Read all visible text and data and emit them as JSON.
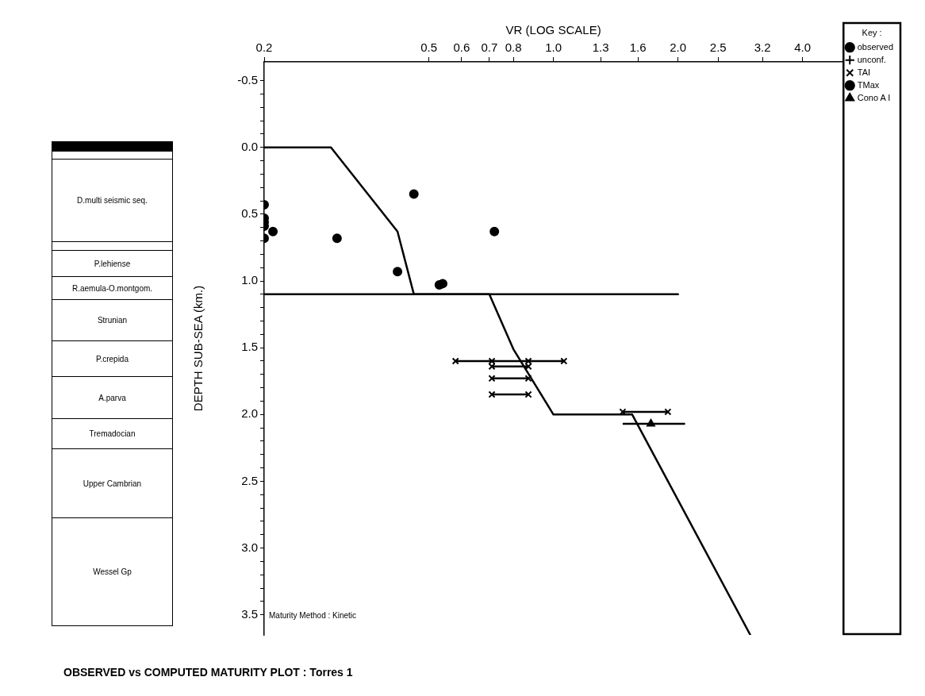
{
  "chart_data": {
    "type": "scatter",
    "title": "OBSERVED vs COMPUTED MATURITY PLOT : Torres 1",
    "xlabel": "VR (LOG SCALE)",
    "ylabel": "DEPTH SUB-SEA (km.)",
    "log": "x",
    "xlim": [
      0.2,
      5
    ],
    "xticks": [
      0.2,
      0.5,
      0.6,
      0.7,
      0.8,
      {
        "value": 1,
        "label": "1.0"
      },
      1.3,
      1.6,
      {
        "value": 2,
        "label": "2.0"
      },
      2.5,
      3.2,
      {
        "value": 4,
        "label": "4.0"
      }
    ],
    "ylim": [
      3.65,
      -0.64
    ],
    "yticks": [
      {
        "value": -0.5,
        "label": "-0.5"
      },
      {
        "value": -0.4,
        "label": null
      },
      {
        "value": -0.3,
        "label": null
      },
      {
        "value": -0.2,
        "label": null
      },
      {
        "value": -0.1,
        "label": null
      },
      {
        "value": 0,
        "label": "0.0"
      },
      {
        "value": 0.1,
        "label": null
      },
      {
        "value": 0.2,
        "label": null
      },
      {
        "value": 0.3,
        "label": null
      },
      {
        "value": 0.4,
        "label": null
      },
      {
        "value": 0.5,
        "label": "0.5"
      },
      {
        "value": 0.6,
        "label": null
      },
      {
        "value": 0.7,
        "label": null
      },
      {
        "value": 0.8,
        "label": null
      },
      {
        "value": 0.9,
        "label": null
      },
      {
        "value": 1,
        "label": "1.0"
      },
      {
        "value": 1.1,
        "label": null
      },
      {
        "value": 1.2,
        "label": null
      },
      {
        "value": 1.3,
        "label": null
      },
      {
        "value": 1.4,
        "label": null
      },
      {
        "value": 1.5,
        "label": "1.5"
      },
      {
        "value": 1.6,
        "label": null
      },
      {
        "value": 1.7,
        "label": null
      },
      {
        "value": 1.8,
        "label": null
      },
      {
        "value": 1.9,
        "label": null
      },
      {
        "value": 2,
        "label": "2.0"
      },
      {
        "value": 2.1,
        "label": null
      },
      {
        "value": 2.2,
        "label": null
      },
      {
        "value": 2.3,
        "label": null
      },
      {
        "value": 2.4,
        "label": null
      },
      {
        "value": 2.5,
        "label": "2.5"
      },
      {
        "value": 2.6,
        "label": null
      },
      {
        "value": 2.7,
        "label": null
      },
      {
        "value": 2.8,
        "label": null
      },
      {
        "value": 2.9,
        "label": null
      },
      {
        "value": 3,
        "label": "3.0"
      },
      {
        "value": 3.1,
        "label": null
      },
      {
        "value": 3.2,
        "label": null
      },
      {
        "value": 3.3,
        "label": null
      },
      {
        "value": 3.4,
        "label": null
      },
      {
        "value": 3.5,
        "label": "3.5"
      }
    ],
    "legend": "top right",
    "legend_title": "Key :",
    "series": [
      {
        "type": "line",
        "color": "#000000",
        "x": [
          0.2,
          0.29,
          0.42,
          0.46,
          0.7,
          0.8,
          1.0,
          1.55,
          2.99
        ],
        "values": [
          0.0,
          0.0,
          0.63,
          1.1,
          1.1,
          1.51,
          2.0,
          2.0,
          3.65
        ]
      },
      {
        "type": "line",
        "color": "#000000",
        "x": [
          0.2,
          2.0
        ],
        "values": [
          1.1,
          1.1
        ]
      },
      {
        "name": "observed",
        "marker": "circle",
        "color": "#000000"
      },
      {
        "name": "unconf.",
        "marker": "plus",
        "color": "#000000"
      },
      {
        "name": "TAI",
        "marker": "cross",
        "color": "#000000",
        "x": [
          0.58,
          0.71,
          0.87,
          1.06,
          0.71,
          0.87,
          0.71,
          0.87,
          0.71,
          0.87,
          1.47,
          1.89
        ],
        "values": [
          1.6,
          1.6,
          1.6,
          1.6,
          1.64,
          1.64,
          1.73,
          1.73,
          1.85,
          1.85,
          1.98,
          1.98
        ],
        "xerrors": [
          [
            0.58,
            1.06
          ],
          null,
          null,
          null,
          [
            0.71,
            0.87
          ],
          null,
          [
            0.71,
            0.87
          ],
          null,
          [
            0.71,
            0.87
          ],
          null,
          [
            1.47,
            1.89
          ],
          null
        ]
      },
      {
        "name": "TMax",
        "marker": "circle",
        "color": "#000000",
        "x": [
          0.2,
          0.2,
          0.2,
          0.2,
          0.21,
          0.2,
          0.3,
          0.46,
          0.72,
          0.42,
          0.53,
          0.54
        ],
        "values": [
          0.43,
          0.53,
          0.56,
          0.59,
          0.63,
          0.68,
          0.68,
          0.35,
          0.63,
          0.93,
          1.03,
          1.02
        ]
      },
      {
        "name": "Cono A I",
        "marker": "triangle",
        "color": "#000000",
        "x": [
          1.72
        ],
        "values": [
          2.07
        ],
        "xerrors": [
          [
            1.47,
            2.08
          ]
        ]
      }
    ],
    "annotations": [
      "Maturity Method : Kinetic",
      "D.multi seismic seq.",
      "P.lehiense",
      "R.aemula-O.montgom.",
      "Strunian",
      "P.crepida",
      "A.parva",
      "Tremadocian",
      "Upper Cambrian",
      "Wessel Gp"
    ]
  }
}
